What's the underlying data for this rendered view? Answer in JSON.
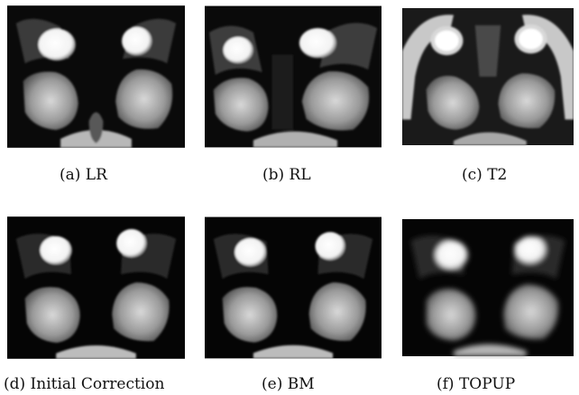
{
  "figure": {
    "panels": [
      {
        "id": "a",
        "caption": "(a) LR"
      },
      {
        "id": "b",
        "caption": "(b) RL"
      },
      {
        "id": "c",
        "caption": "(c) T2"
      },
      {
        "id": "d",
        "caption": "(d) Initial Correction"
      },
      {
        "id": "e",
        "caption": "(e) BM"
      },
      {
        "id": "f",
        "caption": "(f) TOPUP"
      }
    ]
  }
}
